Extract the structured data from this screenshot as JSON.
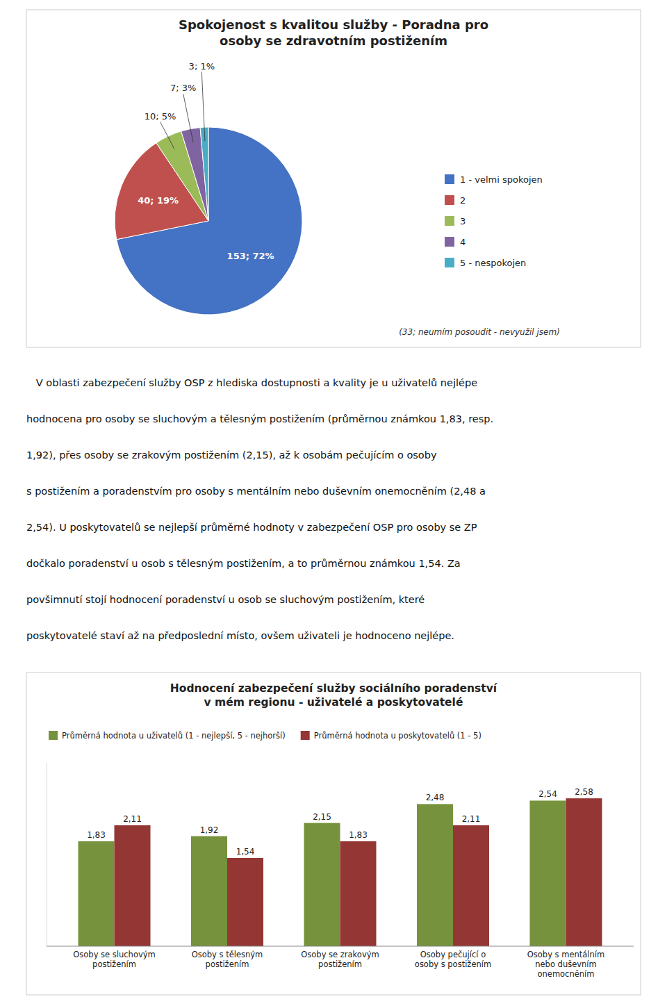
{
  "chart_data": [
    {
      "type": "pie",
      "title": "Spokojenost s kvalitou služby - Poradna pro\nosoby se zdravotním postižením",
      "categories": [
        "1 - velmi spokojen",
        "2",
        "3",
        "4",
        "5 - nespokojen"
      ],
      "values": [
        153,
        40,
        10,
        7,
        3
      ],
      "value_labels": [
        "153; 72%",
        "40; 19%",
        "10; 5%",
        "7; 3%",
        "3; 1%"
      ],
      "colors": [
        "#4472C4",
        "#C0504D",
        "#9BBB59",
        "#8064A2",
        "#4BACC6"
      ],
      "annotations": [
        "(33; neumím posoudit - nevyužil jsem)"
      ],
      "data_labels": true,
      "legend": "right"
    },
    {
      "type": "bar",
      "title": "Hodnocení zabezpečení služby sociálního poradenství\nv mém regionu - uživatelé a poskytovatelé",
      "categories": [
        "Osoby se sluchovým\npostižením",
        "Osoby s tělesným\npostižením",
        "Osoby se zrakovým\npostižením",
        "Osoby pečující o\nosoby s postižením",
        "Osoby s mentálním\nnebo duševním\nonemocněním"
      ],
      "series": [
        {
          "name": "Průměrná hodnota u uživatelů (1 - nejlepší, 5 - nejhorší)",
          "color": "#76923C",
          "values": [
            1.83,
            1.92,
            2.15,
            2.48,
            2.54
          ],
          "value_labels": [
            "1,83",
            "1,92",
            "2,15",
            "2,48",
            "2,54"
          ]
        },
        {
          "name": "Průměrná hodnota u poskytovatelů (1 - 5)",
          "color": "#943634",
          "values": [
            2.11,
            1.54,
            1.83,
            2.11,
            2.58
          ],
          "value_labels": [
            "2,11",
            "1,54",
            "1,83",
            "2,11",
            "2,58"
          ]
        }
      ],
      "ylim": [
        0,
        3.2
      ],
      "tick_labels": "x",
      "data_labels": true,
      "legend": "top"
    }
  ],
  "text_block": [
    "   V oblasti zabezpečení služby OSP z hlediska dostupnosti a kvality je u uživatelů nejlépe",
    "hodnocena pro osoby se sluchovým a tělesným postižením (průměrnou známkou 1,83, resp.",
    "1,92), přes osoby se zrakovým postižením (2,15), až k osobám pečujícím o osoby",
    "s postižením a poradenstvím pro osoby s mentálním nebo duševním onemocněním (2,48 a",
    "2,54). U poskytovatelů se nejlepší průměrné hodnoty v zabezpečení OSP pro osoby se ZP",
    "dočkalo poradenství u osob s tělesným postižením, a to průměrnou známkou 1,54. Za",
    "povšimnutí stojí hodnocení poradenství u osob se sluchovým postižením, které",
    "poskytovatelé staví až na předposlední místo, ovšem uživateli je hodnoceno nejlépe."
  ]
}
